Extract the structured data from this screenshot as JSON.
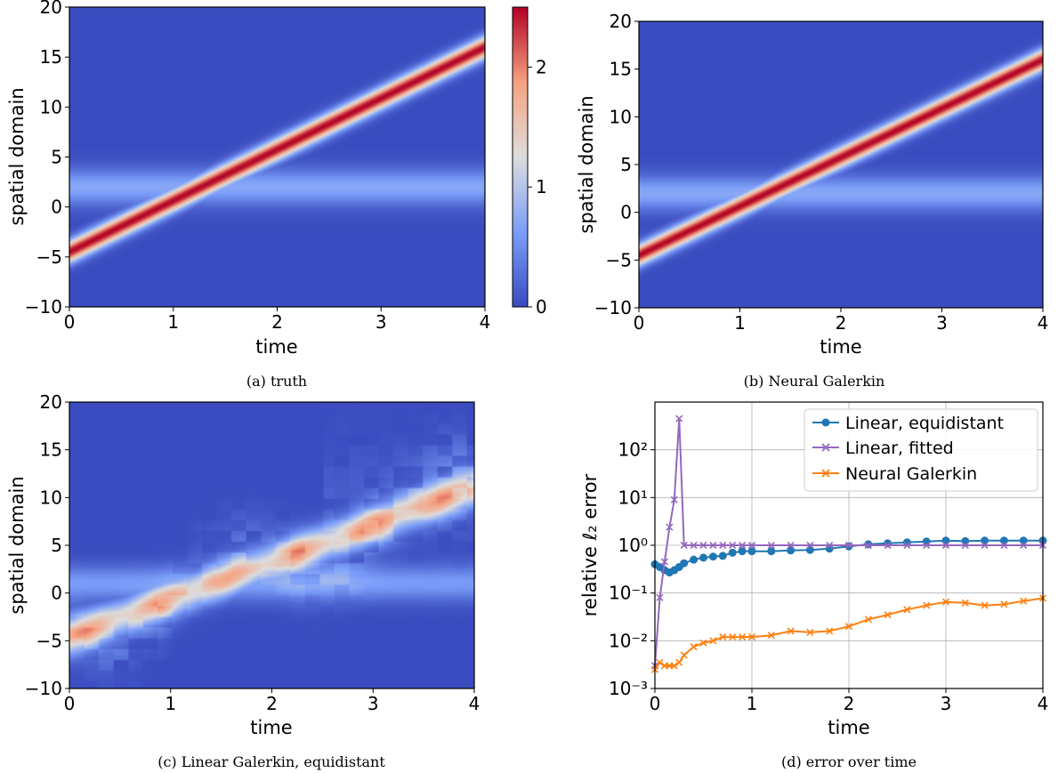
{
  "chart_data": [
    {
      "id": "a",
      "type": "heatmap",
      "caption": "(a) truth",
      "xlabel": "time",
      "ylabel": "spatial domain",
      "xlim": [
        0,
        4
      ],
      "ylim": [
        -10,
        20
      ],
      "xticks": [
        "0",
        "1",
        "2",
        "3",
        "4"
      ],
      "yticks": [
        "−10",
        "−5",
        "0",
        "5",
        "10",
        "15",
        "20"
      ],
      "colormap": "coolwarm",
      "field": {
        "pulse_start": -4.5,
        "pulse_end": 16,
        "pulse_peak": 2.5,
        "background_band_center": 2,
        "background_band_level": 0.7,
        "noisy": false
      },
      "colorbar": {
        "range": [
          0,
          2.5
        ],
        "ticks": [
          "0",
          "1",
          "2"
        ]
      }
    },
    {
      "id": "b",
      "type": "heatmap",
      "caption": "(b) Neural Galerkin",
      "xlabel": "time",
      "ylabel": "spatial domain",
      "xlim": [
        0,
        4
      ],
      "ylim": [
        -10,
        20
      ],
      "xticks": [
        "0",
        "1",
        "2",
        "3",
        "4"
      ],
      "yticks": [
        "−10",
        "−5",
        "0",
        "5",
        "10",
        "15",
        "20"
      ],
      "colormap": "coolwarm",
      "field": {
        "pulse_start": -4.5,
        "pulse_end": 16,
        "pulse_peak": 2.5,
        "background_band_center": 2,
        "background_band_level": 0.7,
        "noisy": false
      }
    },
    {
      "id": "c",
      "type": "heatmap",
      "caption": "(c) Linear Galerkin, equidistant",
      "xlabel": "time",
      "ylabel": "spatial domain",
      "xlim": [
        0,
        4
      ],
      "ylim": [
        -10,
        20
      ],
      "xticks": [
        "0",
        "1",
        "2",
        "3",
        "4"
      ],
      "yticks": [
        "−10",
        "−5",
        "0",
        "5",
        "10",
        "15",
        "20"
      ],
      "colormap": "coolwarm",
      "field": {
        "pulse_start": -4.5,
        "pulse_end": 11,
        "pulse_peak": 1.8,
        "background_band_center": 1,
        "background_band_level": 0.6,
        "noisy": true
      }
    },
    {
      "id": "d",
      "type": "line",
      "caption": "(d) error over time",
      "xlabel": "time",
      "ylabel": "relative ℓ₂ error",
      "xlim": [
        0,
        4
      ],
      "ylim": [
        0.001,
        1000
      ],
      "yscale": "log",
      "grid": true,
      "legend_position": "top-right",
      "xticks": [
        "0",
        "1",
        "2",
        "3",
        "4"
      ],
      "yticks": [
        "10⁻³",
        "10⁻²",
        "10⁻¹",
        "10⁰",
        "10¹",
        "10²"
      ],
      "series": [
        {
          "name": "Linear, equidistant",
          "color": "#1f77b4",
          "marker": "circle",
          "x": [
            0,
            0.05,
            0.1,
            0.15,
            0.2,
            0.25,
            0.3,
            0.4,
            0.5,
            0.6,
            0.7,
            0.8,
            0.9,
            1.0,
            1.2,
            1.4,
            1.6,
            1.8,
            2.0,
            2.2,
            2.4,
            2.6,
            2.8,
            3.0,
            3.2,
            3.4,
            3.6,
            3.8,
            4.0
          ],
          "y": [
            0.4,
            0.35,
            0.3,
            0.27,
            0.3,
            0.35,
            0.42,
            0.5,
            0.55,
            0.58,
            0.6,
            0.7,
            0.75,
            0.75,
            0.75,
            0.78,
            0.8,
            0.85,
            0.95,
            1.05,
            1.1,
            1.15,
            1.2,
            1.25,
            1.22,
            1.25,
            1.25,
            1.25,
            1.25
          ]
        },
        {
          "name": "Linear, fitted",
          "color": "#9467bd",
          "marker": "x",
          "x": [
            0,
            0.05,
            0.1,
            0.15,
            0.2,
            0.25,
            0.3,
            0.4,
            0.5,
            0.6,
            0.7,
            0.8,
            0.9,
            1.0,
            1.2,
            1.4,
            1.6,
            1.8,
            2.0,
            2.2,
            2.4,
            2.6,
            2.8,
            3.0,
            3.2,
            3.4,
            3.6,
            3.8,
            4.0
          ],
          "y": [
            0.003,
            0.08,
            0.45,
            2.4,
            9,
            450,
            1.0,
            1.0,
            1.0,
            1.0,
            1.0,
            1.0,
            1.0,
            1.0,
            1.0,
            1.0,
            1.0,
            1.0,
            1.0,
            1.0,
            1.0,
            1.0,
            1.0,
            1.0,
            1.0,
            1.0,
            1.0,
            1.0,
            1.0
          ]
        },
        {
          "name": "Neural Galerkin",
          "color": "#ff7f0e",
          "marker": "x",
          "x": [
            0,
            0.05,
            0.1,
            0.15,
            0.2,
            0.25,
            0.3,
            0.4,
            0.5,
            0.6,
            0.7,
            0.8,
            0.9,
            1.0,
            1.2,
            1.4,
            1.6,
            1.8,
            2.0,
            2.2,
            2.4,
            2.6,
            2.8,
            3.0,
            3.2,
            3.4,
            3.6,
            3.8,
            4.0
          ],
          "y": [
            0.0025,
            0.0035,
            0.003,
            0.003,
            0.003,
            0.0035,
            0.005,
            0.0075,
            0.009,
            0.01,
            0.012,
            0.012,
            0.012,
            0.012,
            0.013,
            0.016,
            0.015,
            0.016,
            0.02,
            0.028,
            0.035,
            0.045,
            0.055,
            0.065,
            0.062,
            0.055,
            0.058,
            0.068,
            0.078
          ]
        }
      ]
    }
  ]
}
